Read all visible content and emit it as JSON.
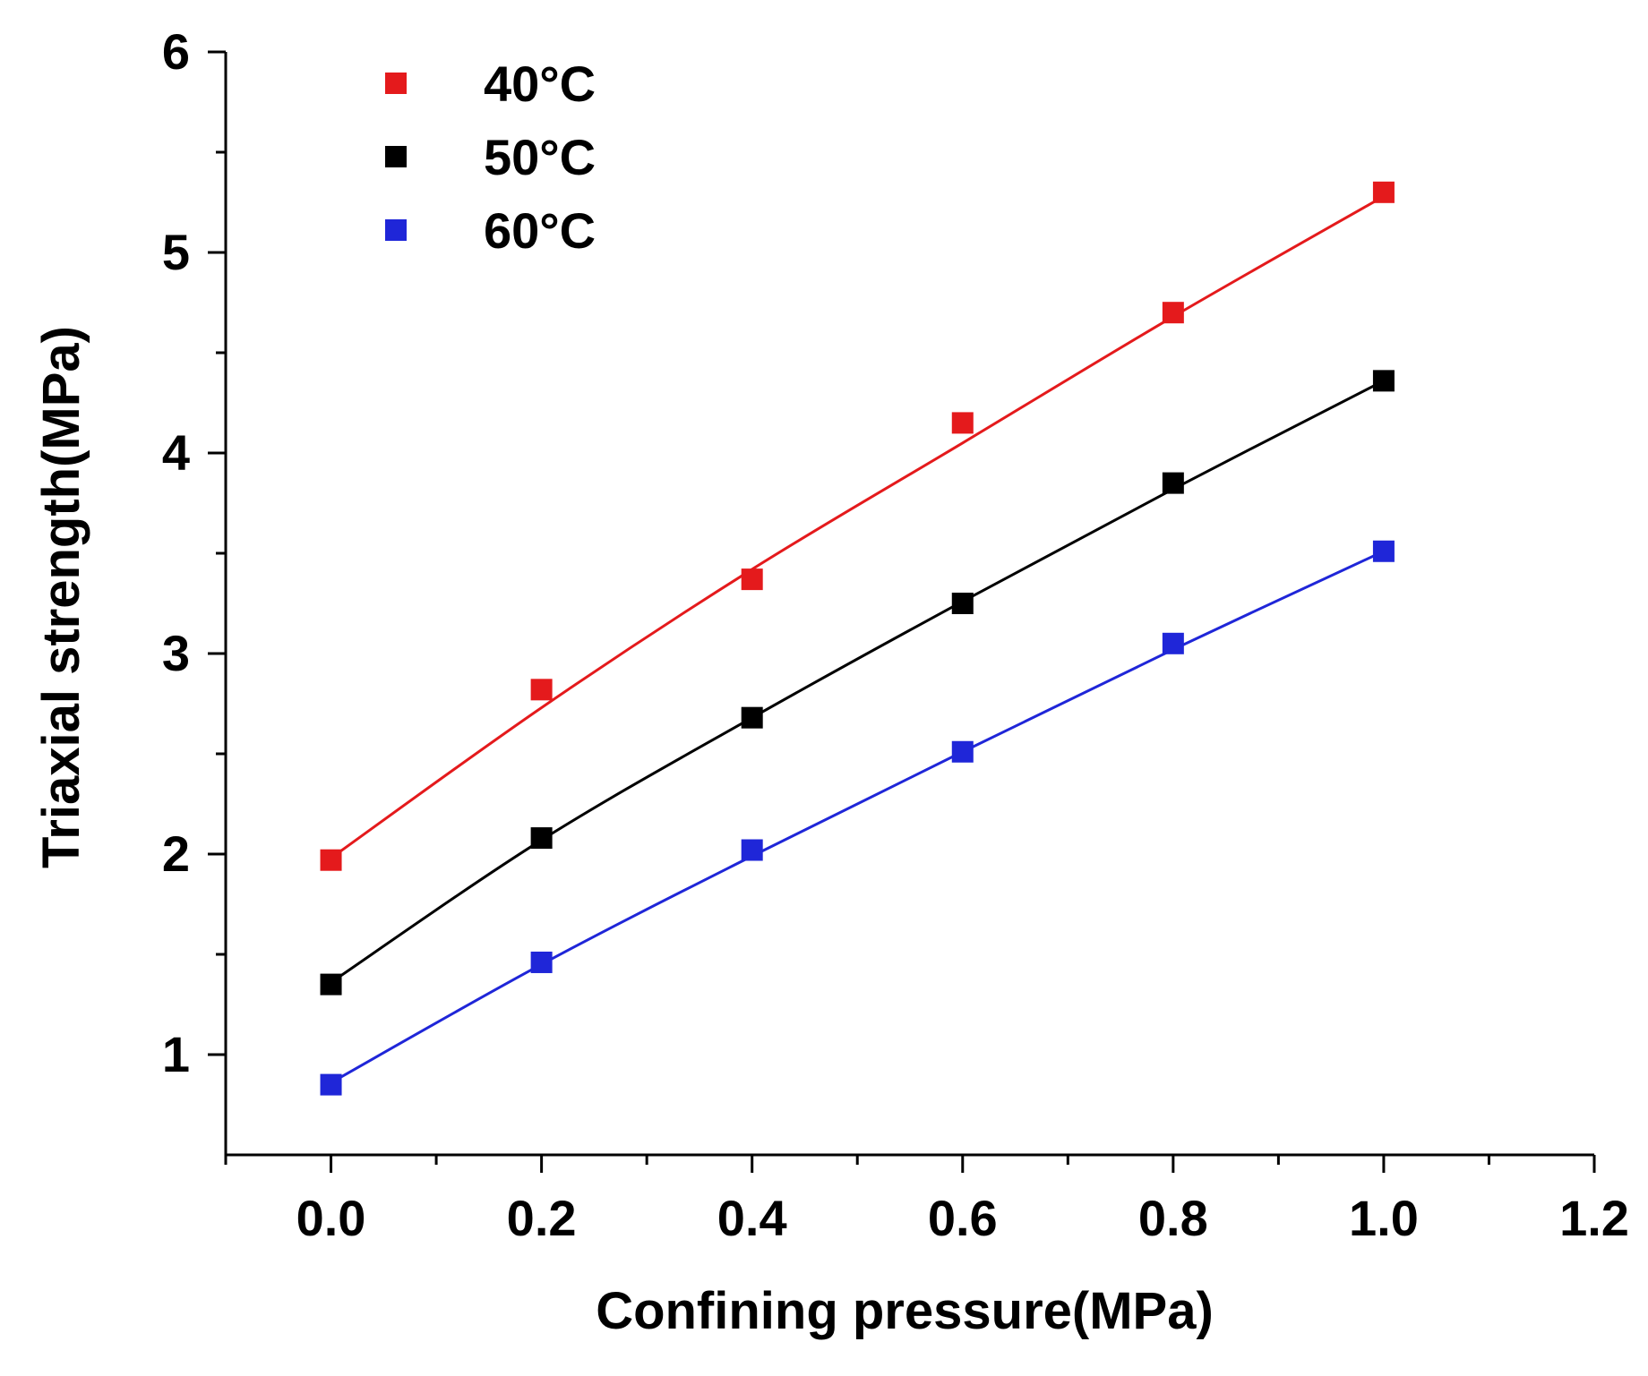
{
  "chart_data": {
    "type": "scatter",
    "title": "",
    "xlabel": "Confining pressure(MPa)",
    "ylabel": "Triaxial strength(MPa)",
    "xlim": [
      -0.1,
      1.2
    ],
    "ylim": [
      0.5,
      6.0
    ],
    "xticks": [
      0.0,
      0.2,
      0.4,
      0.6,
      0.8,
      1.0,
      1.2
    ],
    "xtick_labels": [
      "0.0",
      "0.2",
      "0.4",
      "0.6",
      "0.8",
      "1.0",
      "1.2"
    ],
    "x_minor_ticks": [
      -0.1,
      0.1,
      0.3,
      0.5,
      0.7,
      0.9,
      1.1
    ],
    "yticks": [
      1,
      2,
      3,
      4,
      5,
      6
    ],
    "ytick_labels": [
      "1",
      "2",
      "3",
      "4",
      "5",
      "6"
    ],
    "y_minor_ticks": [
      1.5,
      2.5,
      3.5,
      4.5,
      5.5
    ],
    "grid": false,
    "legend_position": "top-left",
    "fit_lines": true,
    "x": [
      0.0,
      0.2,
      0.4,
      0.6,
      0.8,
      1.0
    ],
    "series": [
      {
        "name": "40°C",
        "color": "#e41a1c",
        "values": [
          1.97,
          2.82,
          3.37,
          4.15,
          4.7,
          5.3
        ],
        "fit_values": [
          1.98,
          2.73,
          3.42,
          4.05,
          4.68,
          5.28
        ]
      },
      {
        "name": "50°C",
        "color": "#000000",
        "values": [
          1.35,
          2.08,
          2.68,
          3.25,
          3.85,
          4.36
        ],
        "fit_values": [
          1.36,
          2.07,
          2.68,
          3.26,
          3.82,
          4.36
        ]
      },
      {
        "name": "60°C",
        "color": "#1f26d8",
        "values": [
          0.85,
          1.46,
          2.02,
          2.51,
          3.05,
          3.51
        ],
        "fit_values": [
          0.86,
          1.45,
          1.99,
          2.51,
          3.02,
          3.51
        ]
      }
    ]
  }
}
